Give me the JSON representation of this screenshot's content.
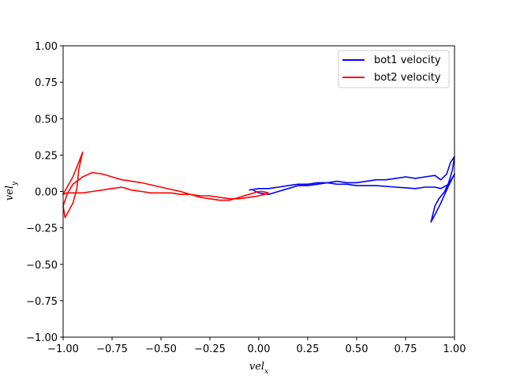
{
  "chart_data": {
    "type": "line",
    "xlabel_main": "vel",
    "xlabel_sub": "x",
    "ylabel_main": "vel",
    "ylabel_sub": "y",
    "xlim": [
      -1.0,
      1.0
    ],
    "ylim": [
      -1.0,
      1.0
    ],
    "xticks": [
      -1.0,
      -0.75,
      -0.5,
      -0.25,
      0.0,
      0.25,
      0.5,
      0.75,
      1.0
    ],
    "yticks": [
      -1.0,
      -0.75,
      -0.5,
      -0.25,
      0.0,
      0.25,
      0.5,
      0.75,
      1.0
    ],
    "xtick_labels": [
      "−1.00",
      "−0.75",
      "−0.50",
      "−0.25",
      "0.00",
      "0.25",
      "0.50",
      "0.75",
      "1.00"
    ],
    "ytick_labels": [
      "−1.00",
      "−0.75",
      "−0.50",
      "−0.25",
      "0.00",
      "0.25",
      "0.50",
      "0.75",
      "1.00"
    ],
    "grid": false,
    "legend_position": "top-right",
    "series": [
      {
        "name": "bot1 velocity",
        "color": "#0000ff",
        "x": [
          -0.05,
          0.0,
          0.05,
          0.1,
          0.15,
          0.2,
          0.25,
          0.3,
          0.35,
          0.4,
          0.45,
          0.5,
          0.55,
          0.6,
          0.65,
          0.7,
          0.75,
          0.8,
          0.85,
          0.9,
          0.93,
          0.96,
          0.98,
          1.0,
          0.99,
          0.97,
          0.95,
          0.92,
          0.9,
          0.88,
          0.9,
          0.93,
          0.95,
          0.97,
          1.0,
          0.97,
          0.93,
          0.9,
          0.85,
          0.8,
          0.7,
          0.6,
          0.5,
          0.45,
          0.4,
          0.35,
          0.3,
          0.25,
          0.2,
          0.15,
          0.1,
          0.05,
          0.0,
          -0.03
        ],
        "y": [
          0.01,
          0.02,
          0.02,
          0.03,
          0.04,
          0.05,
          0.05,
          0.06,
          0.06,
          0.07,
          0.06,
          0.06,
          0.07,
          0.08,
          0.08,
          0.09,
          0.1,
          0.09,
          0.1,
          0.11,
          0.08,
          0.12,
          0.2,
          0.24,
          0.15,
          0.06,
          0.0,
          -0.05,
          -0.1,
          -0.21,
          -0.16,
          -0.08,
          -0.02,
          0.04,
          0.12,
          0.05,
          0.02,
          0.03,
          0.03,
          0.02,
          0.03,
          0.04,
          0.04,
          0.05,
          0.05,
          0.06,
          0.05,
          0.04,
          0.04,
          0.02,
          0.0,
          -0.02,
          -0.01,
          0.01
        ]
      },
      {
        "name": "bot2 velocity",
        "color": "#ff0000",
        "x": [
          0.05,
          0.02,
          0.0,
          -0.05,
          -0.1,
          -0.15,
          -0.2,
          -0.3,
          -0.4,
          -0.5,
          -0.6,
          -0.7,
          -0.75,
          -0.8,
          -0.85,
          -0.9,
          -0.95,
          -0.98,
          -1.0,
          -0.99,
          -0.97,
          -0.95,
          -0.93,
          -0.92,
          -0.9,
          -0.92,
          -0.95,
          -0.98,
          -1.0,
          -0.98,
          -0.95,
          -0.9,
          -0.85,
          -0.8,
          -0.75,
          -0.7,
          -0.65,
          -0.6,
          -0.55,
          -0.5,
          -0.45,
          -0.4,
          -0.35,
          -0.3,
          -0.25,
          -0.2,
          -0.15,
          -0.1,
          -0.05,
          0.0,
          0.03,
          0.05
        ],
        "y": [
          -0.01,
          0.0,
          0.0,
          -0.02,
          -0.04,
          -0.06,
          -0.06,
          -0.04,
          0.0,
          0.03,
          0.06,
          0.08,
          0.1,
          0.12,
          0.13,
          0.1,
          0.05,
          -0.02,
          -0.1,
          -0.18,
          -0.13,
          -0.08,
          0.02,
          0.15,
          0.27,
          0.2,
          0.1,
          0.03,
          -0.02,
          -0.01,
          -0.01,
          -0.01,
          0.0,
          0.01,
          0.02,
          0.03,
          0.01,
          0.0,
          -0.01,
          -0.01,
          -0.01,
          -0.02,
          -0.02,
          -0.03,
          -0.03,
          -0.04,
          -0.05,
          -0.05,
          -0.04,
          -0.03,
          -0.02,
          -0.01
        ]
      }
    ]
  }
}
